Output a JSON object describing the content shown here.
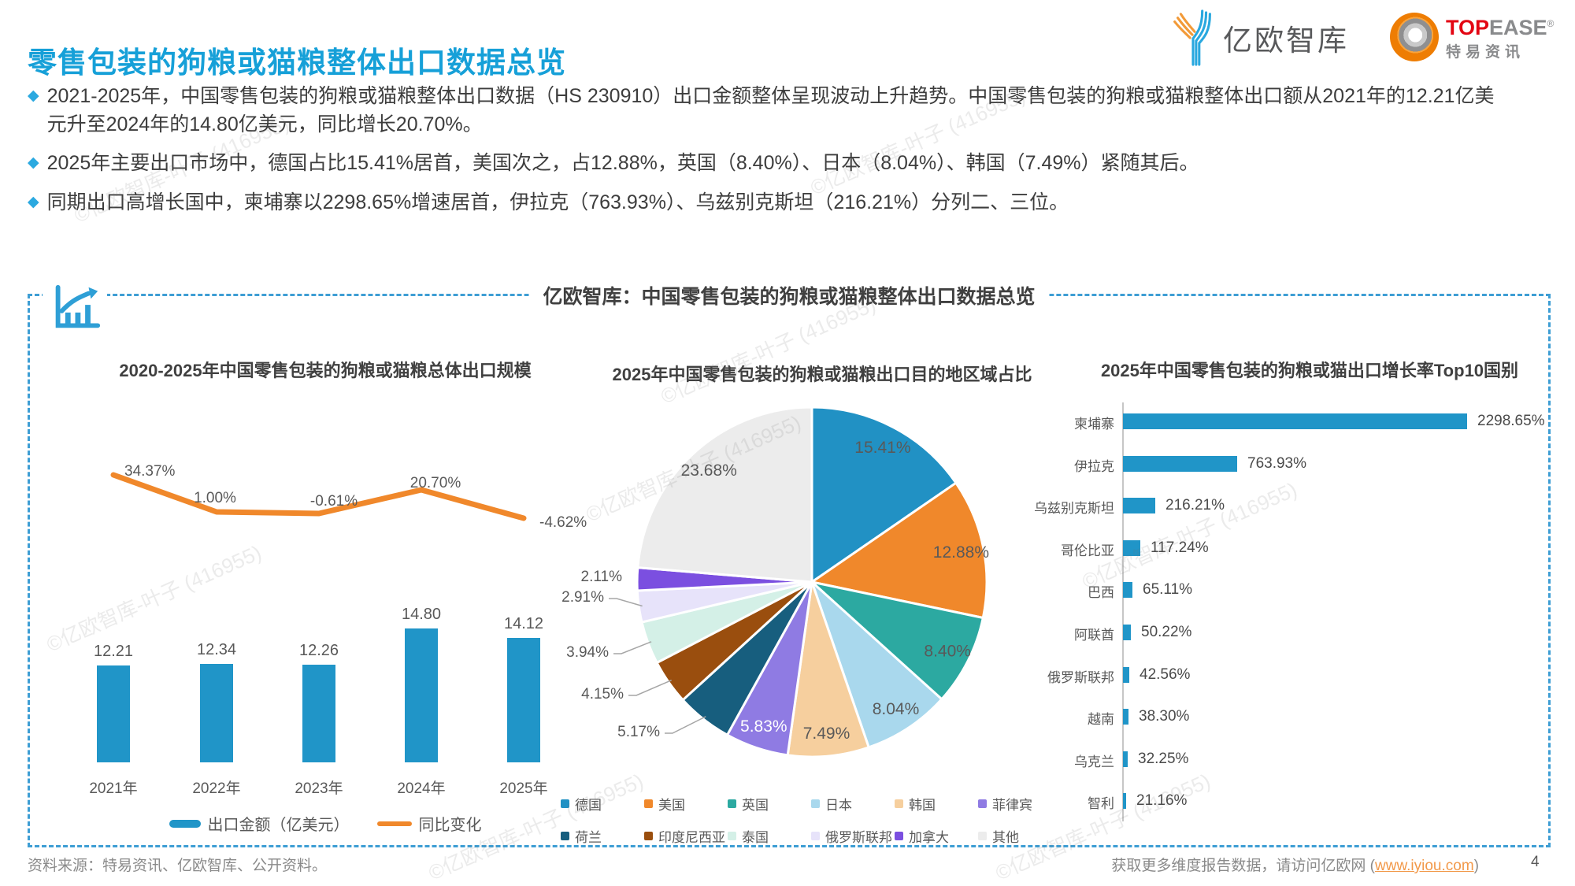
{
  "ui": {
    "bullet_glyph": "◆"
  },
  "header": {
    "title": "零售包装的狗粮或猫粮整体出口数据总览",
    "logos": {
      "yiou_text": "亿欧智库",
      "topease_top": "TOP",
      "topease_ease": "EASE",
      "topease_reg": "®",
      "topease_cn": "特易资讯"
    }
  },
  "bullets": [
    "2021-2025年，中国零售包装的狗粮或猫粮整体出口数据（HS 230910）出口金额整体呈现波动上升趋势。中国零售包装的狗粮或猫粮整体出口额从2021年的12.21亿美元升至2024年的14.80亿美元，同比增长20.70%。",
    "2025年主要出口市场中，德国占比15.41%居首，美国次之，占12.88%，英国（8.40%）、日本（8.04%）、韩国（7.49%）紧随其后。",
    "同期出口高增长国中，柬埔寨以2298.65%增速居首，伊拉克（763.93%）、乌兹别克斯坦（216.21%）分列二、三位。"
  ],
  "box": {
    "title": "亿欧智库：中国零售包装的狗粮或猫粮整体出口数据总览"
  },
  "watermark_text": "©亿欧智库-叶子 (416955)",
  "colors": {
    "accent_blue": "#16A0D8",
    "bar_blue": "#2095C8",
    "line_orange": "#F0882B",
    "border_blue": "#3E9ED4",
    "link_orange": "#F2994A"
  },
  "chart_data": [
    {
      "type": "bar+line",
      "title": "2020-2025年中国零售包装的狗粮或猫粮总体出口规模",
      "categories": [
        "2021年",
        "2022年",
        "2023年",
        "2024年",
        "2025年"
      ],
      "bar_series": {
        "name": "出口金额（亿美元）",
        "values": [
          12.21,
          12.34,
          12.26,
          14.8,
          14.12
        ],
        "labels": [
          "12.21",
          "12.34",
          "12.26",
          "14.80",
          "14.12"
        ],
        "color": "#2095C8"
      },
      "line_series": {
        "name": "同比变化",
        "values": [
          34.37,
          1.0,
          -0.61,
          20.7,
          -4.62
        ],
        "labels": [
          "34.37%",
          "1.00%",
          "-0.61%",
          "20.70%",
          "-4.62%"
        ],
        "color": "#F0882B"
      },
      "legend_position": "bottom",
      "grid": false
    },
    {
      "type": "pie",
      "title": "2025年中国零售包装的狗粮或猫粮出口目的地区域占比",
      "start_angle_deg": -90,
      "direction": "clockwise",
      "legend_position": "bottom",
      "slices": [
        {
          "label": "德国",
          "value": 15.41,
          "text": "15.41%",
          "color": "#2191C4"
        },
        {
          "label": "美国",
          "value": 12.88,
          "text": "12.88%",
          "color": "#F0882B"
        },
        {
          "label": "英国",
          "value": 8.4,
          "text": "8.40%",
          "color": "#2CA9A1"
        },
        {
          "label": "日本",
          "value": 8.04,
          "text": "8.04%",
          "color": "#A9D8ED"
        },
        {
          "label": "韩国",
          "value": 7.49,
          "text": "7.49%",
          "color": "#F6CF9E"
        },
        {
          "label": "菲律宾",
          "value": 5.83,
          "text": "5.83%",
          "color": "#8F7BE3"
        },
        {
          "label": "荷兰",
          "value": 5.17,
          "text": "5.17%",
          "color": "#175E7E"
        },
        {
          "label": "印度尼西亚",
          "value": 4.15,
          "text": "4.15%",
          "color": "#9A4E0E"
        },
        {
          "label": "泰国",
          "value": 3.94,
          "text": "3.94%",
          "color": "#D4F0E7"
        },
        {
          "label": "俄罗斯联邦",
          "value": 2.91,
          "text": "2.91%",
          "color": "#E7E3FA"
        },
        {
          "label": "加拿大",
          "value": 2.11,
          "text": "2.11%",
          "color": "#7B4FE0"
        },
        {
          "label": "其他",
          "value": 23.68,
          "text": "23.68%",
          "color": "#ECECEC"
        }
      ]
    },
    {
      "type": "bar-horizontal",
      "title": "2025年中国零售包装的狗粮或猫出口增长率Top10国别",
      "categories": [
        "柬埔寨",
        "伊拉克",
        "乌兹别克斯坦",
        "哥伦比亚",
        "巴西",
        "阿联酋",
        "俄罗斯联邦",
        "越南",
        "乌克兰",
        "智利"
      ],
      "values": [
        2298.65,
        763.93,
        216.21,
        117.24,
        65.11,
        50.22,
        42.56,
        38.3,
        32.25,
        21.16
      ],
      "labels": [
        "2298.65%",
        "763.93%",
        "216.21%",
        "117.24%",
        "65.11%",
        "50.22%",
        "42.56%",
        "38.30%",
        "32.25%",
        "21.16%"
      ],
      "color": "#2095C8"
    }
  ],
  "footer": {
    "source": "资料来源：特易资讯、亿欧智库、公开资料。",
    "right_prefix": "获取更多维度报告数据，请访问亿欧网 (",
    "link": "www.iyiou.com",
    "right_suffix": ")",
    "page": "4"
  }
}
